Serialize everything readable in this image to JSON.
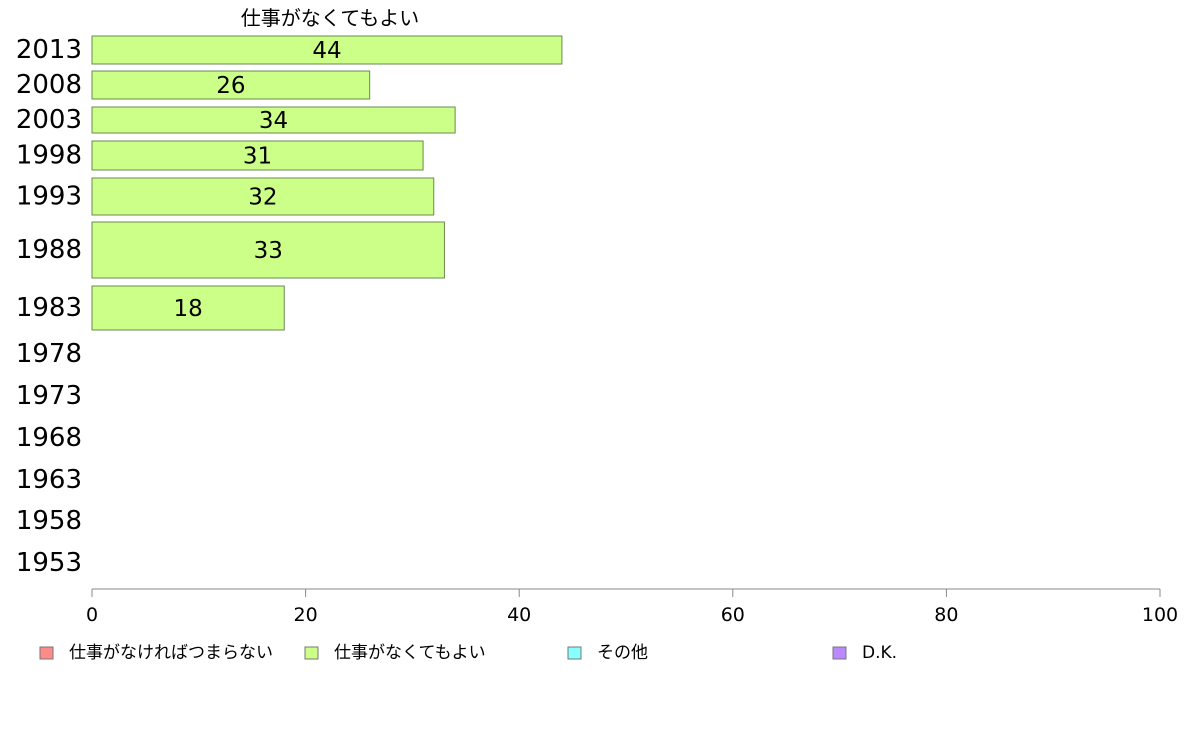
{
  "chart_data": {
    "type": "bar",
    "orientation": "horizontal",
    "title": "仕事がなくてもよい",
    "categories": [
      "2013",
      "2008",
      "2003",
      "1998",
      "1993",
      "1988",
      "1983",
      "1978",
      "1973",
      "1968",
      "1963",
      "1958",
      "1953"
    ],
    "series": [
      {
        "name": "仕事がなくてもよい",
        "color": "#ccff88",
        "values": [
          44,
          26,
          34,
          31,
          32,
          33,
          18,
          null,
          null,
          null,
          null,
          null,
          null
        ],
        "labels": [
          "44",
          "26",
          "34",
          "31",
          "32",
          "33",
          "18",
          null,
          null,
          null,
          null,
          null,
          null
        ]
      }
    ],
    "x_ticks": [
      "0",
      "20",
      "40",
      "60",
      "80",
      "100"
    ],
    "xlim": [
      0,
      100
    ],
    "legend": [
      {
        "name": "仕事がなければつまらない",
        "color": "#ff8a8a"
      },
      {
        "name": "仕事がなくてもよい",
        "color": "#ccff88"
      },
      {
        "name": "その他",
        "color": "#88ffff"
      },
      {
        "name": "D.K.",
        "color": "#bb88ff"
      }
    ],
    "legend_position": "bottom",
    "grid": false
  }
}
